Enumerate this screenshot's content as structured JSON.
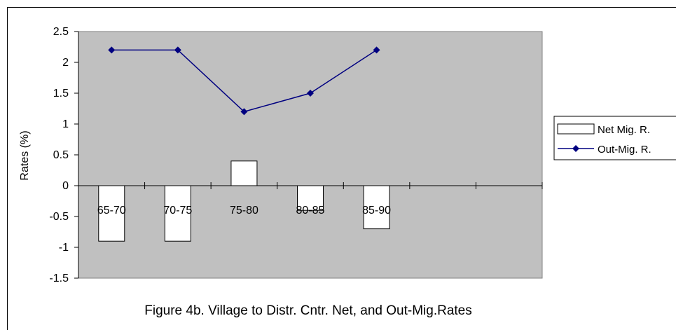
{
  "chart_data": {
    "type": "bar+line",
    "categories": [
      "65-70",
      "70-75",
      "75-80",
      "80-85",
      "85-90",
      "",
      ""
    ],
    "series": [
      {
        "name": "Net Mig. R.",
        "kind": "bar",
        "values": [
          -0.9,
          -0.9,
          0.4,
          -0.4,
          -0.7,
          null,
          null
        ],
        "color": "#ffffff"
      },
      {
        "name": "Out-Mig. R.",
        "kind": "line",
        "values": [
          2.2,
          2.2,
          1.2,
          1.5,
          2.2,
          null,
          null
        ],
        "color": "#000080"
      }
    ],
    "ylabel": "Rates (%)",
    "xlabel": "",
    "ylim": [
      -1.5,
      2.5
    ],
    "yticks": [
      "2.5",
      "2",
      "1.5",
      "1",
      "0.5",
      "0",
      "-0.5",
      "-1",
      "-1.5"
    ],
    "ytick_values": [
      2.5,
      2,
      1.5,
      1,
      0.5,
      0,
      -0.5,
      -1,
      -1.5
    ],
    "plot_background": "#c0c0c0",
    "legend_position": "right",
    "caption": "Figure 4b.  Village to Distr. Cntr. Net, and Out-Mig.Rates"
  }
}
